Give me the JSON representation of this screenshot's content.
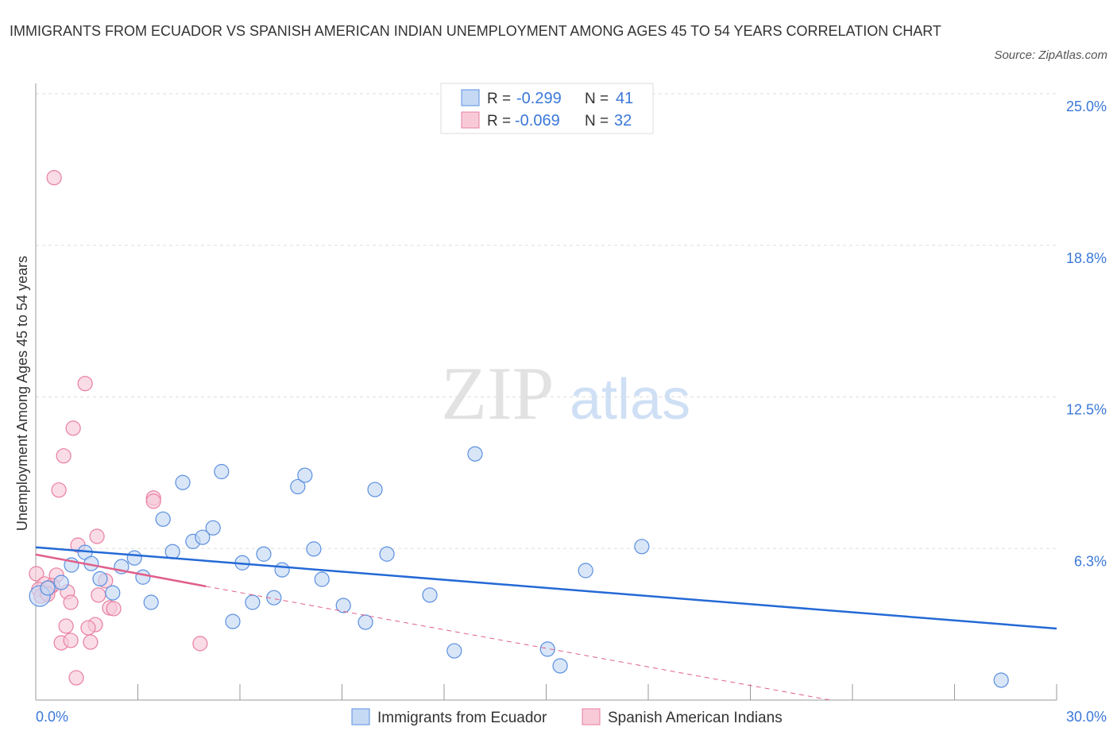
{
  "title": "IMMIGRANTS FROM ECUADOR VS SPANISH AMERICAN INDIAN UNEMPLOYMENT AMONG AGES 45 TO 54 YEARS CORRELATION CHART",
  "source": "Source: ZipAtlas.com",
  "watermark": {
    "zip": "ZIP",
    "atlas": "atlas"
  },
  "chart_data": {
    "type": "scatter",
    "title": "IMMIGRANTS FROM ECUADOR VS SPANISH AMERICAN INDIAN UNEMPLOYMENT AMONG AGES 45 TO 54 YEARS CORRELATION CHART",
    "xlabel": "",
    "ylabel": "Unemployment Among Ages 45 to 54 years",
    "xlim": [
      0,
      30
    ],
    "ylim": [
      0,
      25
    ],
    "x_tick_labels": [
      "0.0%",
      "30.0%"
    ],
    "y_ticks": [
      6.25,
      12.5,
      18.75,
      25
    ],
    "y_tick_labels": [
      "6.3%",
      "12.5%",
      "18.8%",
      "25.0%"
    ],
    "grid": true,
    "legend_stats": [
      {
        "r_label": "R =",
        "r": "-0.299",
        "n_label": "N =",
        "n": "41"
      },
      {
        "r_label": "R =",
        "r": "-0.069",
        "n_label": "N =",
        "n": "32"
      }
    ],
    "series": [
      {
        "name": "Immigrants from Ecuador",
        "color": "#5b8fe0",
        "fill": "#c5d9f5",
        "trend": {
          "x": [
            0,
            30
          ],
          "y": [
            6.3,
            2.95
          ],
          "color": "#2469d6"
        },
        "points": [
          [
            0.12,
            4.29
          ],
          [
            0.35,
            4.62
          ],
          [
            0.75,
            4.85
          ],
          [
            1.05,
            5.57
          ],
          [
            1.45,
            6.09
          ],
          [
            1.63,
            5.63
          ],
          [
            1.89,
            5.0
          ],
          [
            2.26,
            4.42
          ],
          [
            2.52,
            5.5
          ],
          [
            2.9,
            5.86
          ],
          [
            3.15,
            5.07
          ],
          [
            3.39,
            4.03
          ],
          [
            3.74,
            7.46
          ],
          [
            4.02,
            6.12
          ],
          [
            4.32,
            8.97
          ],
          [
            4.62,
            6.54
          ],
          [
            4.9,
            6.71
          ],
          [
            5.21,
            7.1
          ],
          [
            5.46,
            9.42
          ],
          [
            5.79,
            3.24
          ],
          [
            6.07,
            5.66
          ],
          [
            6.37,
            4.03
          ],
          [
            6.7,
            6.02
          ],
          [
            7.0,
            4.22
          ],
          [
            7.24,
            5.37
          ],
          [
            7.7,
            8.8
          ],
          [
            7.91,
            9.27
          ],
          [
            8.17,
            6.23
          ],
          [
            8.41,
            4.98
          ],
          [
            9.04,
            3.9
          ],
          [
            9.69,
            3.21
          ],
          [
            9.97,
            8.68
          ],
          [
            10.32,
            6.02
          ],
          [
            11.58,
            4.33
          ],
          [
            12.3,
            2.03
          ],
          [
            12.91,
            10.15
          ],
          [
            15.04,
            2.1
          ],
          [
            15.41,
            1.41
          ],
          [
            16.16,
            5.34
          ],
          [
            17.81,
            6.33
          ],
          [
            28.37,
            0.82
          ]
        ]
      },
      {
        "name": "Spanish American Indians",
        "color": "#e97fa0",
        "fill": "#f8cad8",
        "trend": {
          "x": [
            0,
            5
          ],
          "y": [
            6.0,
            4.69
          ],
          "dashed_to": [
            23.35,
            0
          ],
          "color": "#e0608a"
        },
        "points": [
          [
            0.54,
            21.54
          ],
          [
            1.45,
            13.05
          ],
          [
            1.1,
            11.21
          ],
          [
            0.82,
            10.07
          ],
          [
            0.68,
            8.66
          ],
          [
            3.46,
            8.33
          ],
          [
            3.46,
            8.2
          ],
          [
            1.8,
            6.75
          ],
          [
            1.24,
            6.39
          ],
          [
            0.02,
            5.21
          ],
          [
            0.61,
            5.15
          ],
          [
            2.05,
            4.92
          ],
          [
            0.26,
            4.79
          ],
          [
            0.49,
            4.72
          ],
          [
            0.09,
            4.56
          ],
          [
            0.93,
            4.46
          ],
          [
            0.3,
            4.43
          ],
          [
            1.84,
            4.33
          ],
          [
            1.03,
            4.03
          ],
          [
            2.17,
            3.8
          ],
          [
            2.29,
            3.77
          ],
          [
            1.75,
            3.11
          ],
          [
            0.89,
            3.05
          ],
          [
            1.54,
            2.98
          ],
          [
            0.75,
            2.36
          ],
          [
            1.03,
            2.46
          ],
          [
            1.61,
            2.39
          ],
          [
            4.83,
            2.33
          ],
          [
            1.19,
            0.92
          ],
          [
            0.4,
            4.62
          ],
          [
            0.16,
            4.29
          ],
          [
            0.35,
            4.36
          ]
        ]
      }
    ]
  }
}
